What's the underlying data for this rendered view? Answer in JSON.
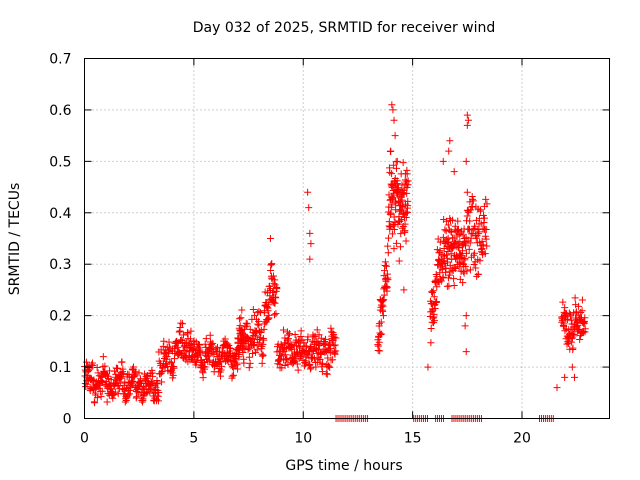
{
  "chart_data": {
    "type": "scatter",
    "title": "Day 032 of 2025, SRMTID for receiver wind",
    "xlabel": "GPS time / hours",
    "ylabel": "SRMTID / TECUs",
    "xlim": [
      0,
      24
    ],
    "ylim": [
      0,
      0.7
    ],
    "xticks": [
      0,
      5,
      10,
      15,
      20
    ],
    "yticks": [
      0,
      0.1,
      0.2,
      0.3,
      0.4,
      0.5,
      0.6,
      0.7
    ],
    "grid": true,
    "marker": "+",
    "series": [
      {
        "name": "SRMTID",
        "color": "#ff0000",
        "segments": [
          {
            "t0": 0.0,
            "t1": 3.4,
            "base": 0.075,
            "slope": -0.004,
            "spread": 0.035,
            "n": 260
          },
          {
            "t0": 3.4,
            "t1": 4.9,
            "base": 0.1,
            "slope": 0.035,
            "spread": 0.04,
            "n": 110
          },
          {
            "t0": 4.9,
            "t1": 7.3,
            "base": 0.12,
            "slope": 0.003,
            "spread": 0.035,
            "n": 190
          },
          {
            "t0": 7.0,
            "t1": 8.2,
            "base": 0.15,
            "slope": 0.01,
            "spread": 0.05,
            "n": 90
          },
          {
            "t0": 8.2,
            "t1": 8.8,
            "base": 0.22,
            "slope": 0.04,
            "spread": 0.05,
            "n": 55
          },
          {
            "t0": 8.8,
            "t1": 11.5,
            "base": 0.13,
            "slope": 0.0,
            "spread": 0.045,
            "n": 200
          },
          {
            "t0": 13.4,
            "t1": 13.9,
            "base": 0.12,
            "slope": 0.45,
            "spread": 0.06,
            "n": 50
          },
          {
            "t0": 13.9,
            "t1": 14.8,
            "base": 0.42,
            "slope": 0.0,
            "spread": 0.1,
            "n": 120
          },
          {
            "t0": 15.8,
            "t1": 16.4,
            "base": 0.2,
            "slope": 0.2,
            "spread": 0.06,
            "n": 60
          },
          {
            "t0": 16.4,
            "t1": 17.4,
            "base": 0.33,
            "slope": 0.0,
            "spread": 0.08,
            "n": 110
          },
          {
            "t0": 17.4,
            "t1": 18.4,
            "base": 0.36,
            "slope": 0.0,
            "spread": 0.09,
            "n": 80
          },
          {
            "t0": 21.8,
            "t1": 22.9,
            "base": 0.17,
            "slope": 0.02,
            "spread": 0.05,
            "n": 90
          }
        ],
        "points": [
          [
            10.2,
            0.44
          ],
          [
            10.25,
            0.41
          ],
          [
            10.3,
            0.36
          ],
          [
            10.35,
            0.34
          ],
          [
            10.3,
            0.31
          ],
          [
            8.5,
            0.35
          ],
          [
            8.55,
            0.3
          ],
          [
            14.05,
            0.61
          ],
          [
            14.1,
            0.6
          ],
          [
            14.15,
            0.58
          ],
          [
            14.2,
            0.55
          ],
          [
            14.0,
            0.52
          ],
          [
            14.3,
            0.5
          ],
          [
            16.7,
            0.54
          ],
          [
            16.65,
            0.52
          ],
          [
            16.9,
            0.48
          ],
          [
            16.4,
            0.5
          ],
          [
            17.5,
            0.59
          ],
          [
            17.55,
            0.58
          ],
          [
            17.5,
            0.57
          ],
          [
            17.45,
            0.5
          ],
          [
            17.5,
            0.44
          ],
          [
            17.45,
            0.2
          ],
          [
            17.4,
            0.18
          ],
          [
            17.45,
            0.13
          ],
          [
            15.7,
            0.1
          ],
          [
            14.6,
            0.25
          ],
          [
            18.0,
            0.28
          ],
          [
            21.6,
            0.06
          ],
          [
            21.95,
            0.08
          ],
          [
            22.4,
            0.08
          ],
          [
            22.3,
            0.1
          ]
        ],
        "zero_runs": [
          [
            11.5,
            13.0
          ],
          [
            15.05,
            15.7
          ],
          [
            16.05,
            16.45
          ],
          [
            16.8,
            18.2
          ],
          [
            20.8,
            21.5
          ]
        ]
      }
    ]
  }
}
